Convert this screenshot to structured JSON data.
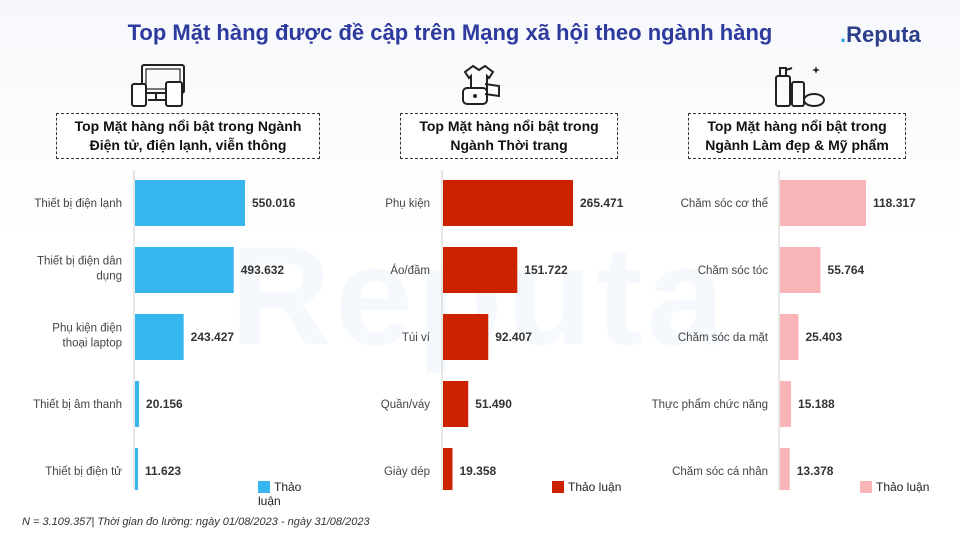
{
  "title": "Top Mặt hàng được đề cập trên Mạng xã hội theo ngành hàng",
  "brand": {
    "mark": ".",
    "name": "Reputa"
  },
  "watermark": "Reputa",
  "footnote": "N = 3.109.357| Thời gian đo lường: ngày 01/08/2023 - ngày 31/08/2023",
  "icons": [
    "electronics-devices-icon",
    "fashion-clothes-bag-icon",
    "cosmetics-bottles-icon"
  ],
  "colors": {
    "electronics": "#37b5ef",
    "fashion": "#cc2200",
    "beauty": "#f8b4b6",
    "title": "#2d3a9e"
  },
  "chart_data": [
    {
      "type": "bar",
      "orientation": "horizontal",
      "title": "Top Mặt hàng nổi bật trong Ngành Điện tử, điện lạnh, viễn thông",
      "title_lines": [
        "Top Mặt hàng nổi bật trong Ngành",
        "Điện tử, điện lạnh, viễn thông"
      ],
      "categories": [
        "Thiết bị điện lạnh",
        "Thiết bị điện dân dụng",
        "Phụ kiện điện thoại laptop",
        "Thiết bị âm thanh",
        "Thiết bị điện tử"
      ],
      "category_lines": [
        [
          "Thiết bị điện lạnh"
        ],
        [
          "Thiết bị điện dân",
          "dụng"
        ],
        [
          "Phụ kiện điện",
          "thoại laptop"
        ],
        [
          "Thiết bị âm thanh"
        ],
        [
          "Thiết bị điện tử"
        ]
      ],
      "series": [
        {
          "name": "Thảo luận",
          "values": [
            550016,
            493632,
            243427,
            20156,
            11623
          ]
        }
      ],
      "labels": [
        "550.016",
        "493.632",
        "243.427",
        "20.156",
        "11.623"
      ],
      "color": "#37b5ef",
      "legend": "bottom-right"
    },
    {
      "type": "bar",
      "orientation": "horizontal",
      "title": "Top Mặt hàng nổi bật trong Ngành Thời trang",
      "title_lines": [
        "Top Mặt hàng nổi bật trong",
        "Ngành Thời trang"
      ],
      "categories": [
        "Phụ kiện",
        "Áo/đầm",
        "Túi ví",
        "Quần/váy",
        "Giày dép"
      ],
      "category_lines": [
        [
          "Phụ kiện"
        ],
        [
          "Áo/đầm"
        ],
        [
          "Túi ví"
        ],
        [
          "Quần/váy"
        ],
        [
          "Giày dép"
        ]
      ],
      "series": [
        {
          "name": "Thảo luận",
          "values": [
            265471,
            151722,
            92407,
            51490,
            19358
          ]
        }
      ],
      "labels": [
        "265.471",
        "151.722",
        "92.407",
        "51.490",
        "19.358"
      ],
      "color": "#cc2200",
      "legend": "bottom-right"
    },
    {
      "type": "bar",
      "orientation": "horizontal",
      "title": "Top Mặt hàng nổi bật trong Ngành Làm đẹp & Mỹ phẩm",
      "title_lines": [
        "Top Mặt hàng nổi bật trong",
        "Ngành Làm đẹp & Mỹ phẩm"
      ],
      "categories": [
        "Chăm sóc cơ thể",
        "Chăm sóc tóc",
        "Chăm sóc da mặt",
        "Thực phẩm chức năng",
        "Chăm sóc cá nhân"
      ],
      "category_lines": [
        [
          "Chăm sóc cơ thể"
        ],
        [
          "Chăm sóc tóc"
        ],
        [
          "Chăm sóc da mặt"
        ],
        [
          "Thực phẩm chức năng"
        ],
        [
          "Chăm sóc cá nhân"
        ]
      ],
      "series": [
        {
          "name": "Thảo luận",
          "values": [
            118317,
            55764,
            25403,
            15188,
            13378
          ]
        }
      ],
      "labels": [
        "118.317",
        "55.764",
        "25.403",
        "15.188",
        "13.378"
      ],
      "color": "#f8b4b6",
      "legend": "bottom-right"
    }
  ]
}
